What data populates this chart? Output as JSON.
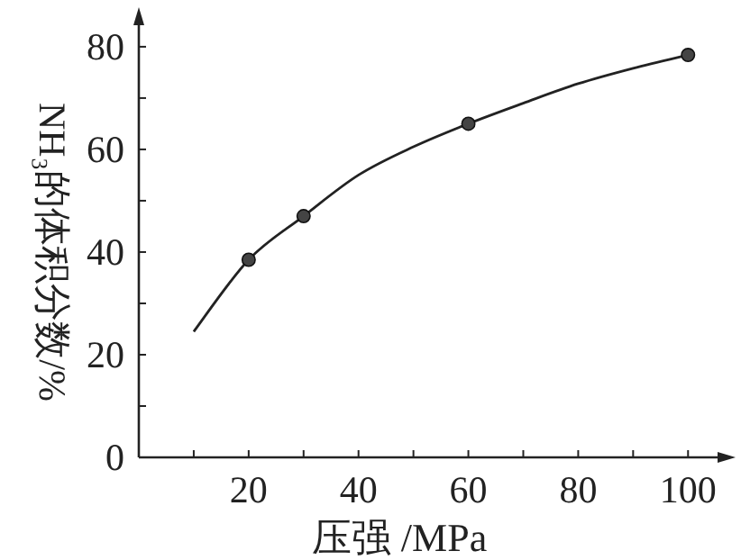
{
  "chart_data": {
    "type": "scatter",
    "xlabel": "压强 /MPa",
    "ylabel": "NH₃的体积分数/%",
    "series": [
      {
        "type": "line",
        "color": "#222222",
        "marker": "none",
        "x": [
          10,
          20,
          30,
          40,
          50,
          60,
          70,
          80,
          90,
          100
        ],
        "values": [
          24.5,
          38.5,
          47,
          55,
          60.5,
          65,
          69,
          72.8,
          75.8,
          78.4
        ]
      },
      {
        "color": "#444444",
        "marker": "circle",
        "x": [
          20,
          30,
          60,
          100
        ],
        "values": [
          38.5,
          47,
          65,
          78.4
        ]
      }
    ],
    "xlim": [
      0,
      108
    ],
    "ylim": [
      0,
      87
    ],
    "xticks": [
      {
        "value": 10,
        "label": null
      },
      20,
      {
        "value": 30,
        "label": null
      },
      40,
      {
        "value": 50,
        "label": null
      },
      60,
      {
        "value": 70,
        "label": null
      },
      80,
      {
        "value": 90,
        "label": null
      },
      100
    ],
    "yticks": [
      0,
      {
        "value": 10,
        "label": null
      },
      20,
      {
        "value": 30,
        "label": null
      },
      40,
      {
        "value": 50,
        "label": null
      },
      60,
      {
        "value": 70,
        "label": null
      },
      80
    ],
    "grid": false
  }
}
